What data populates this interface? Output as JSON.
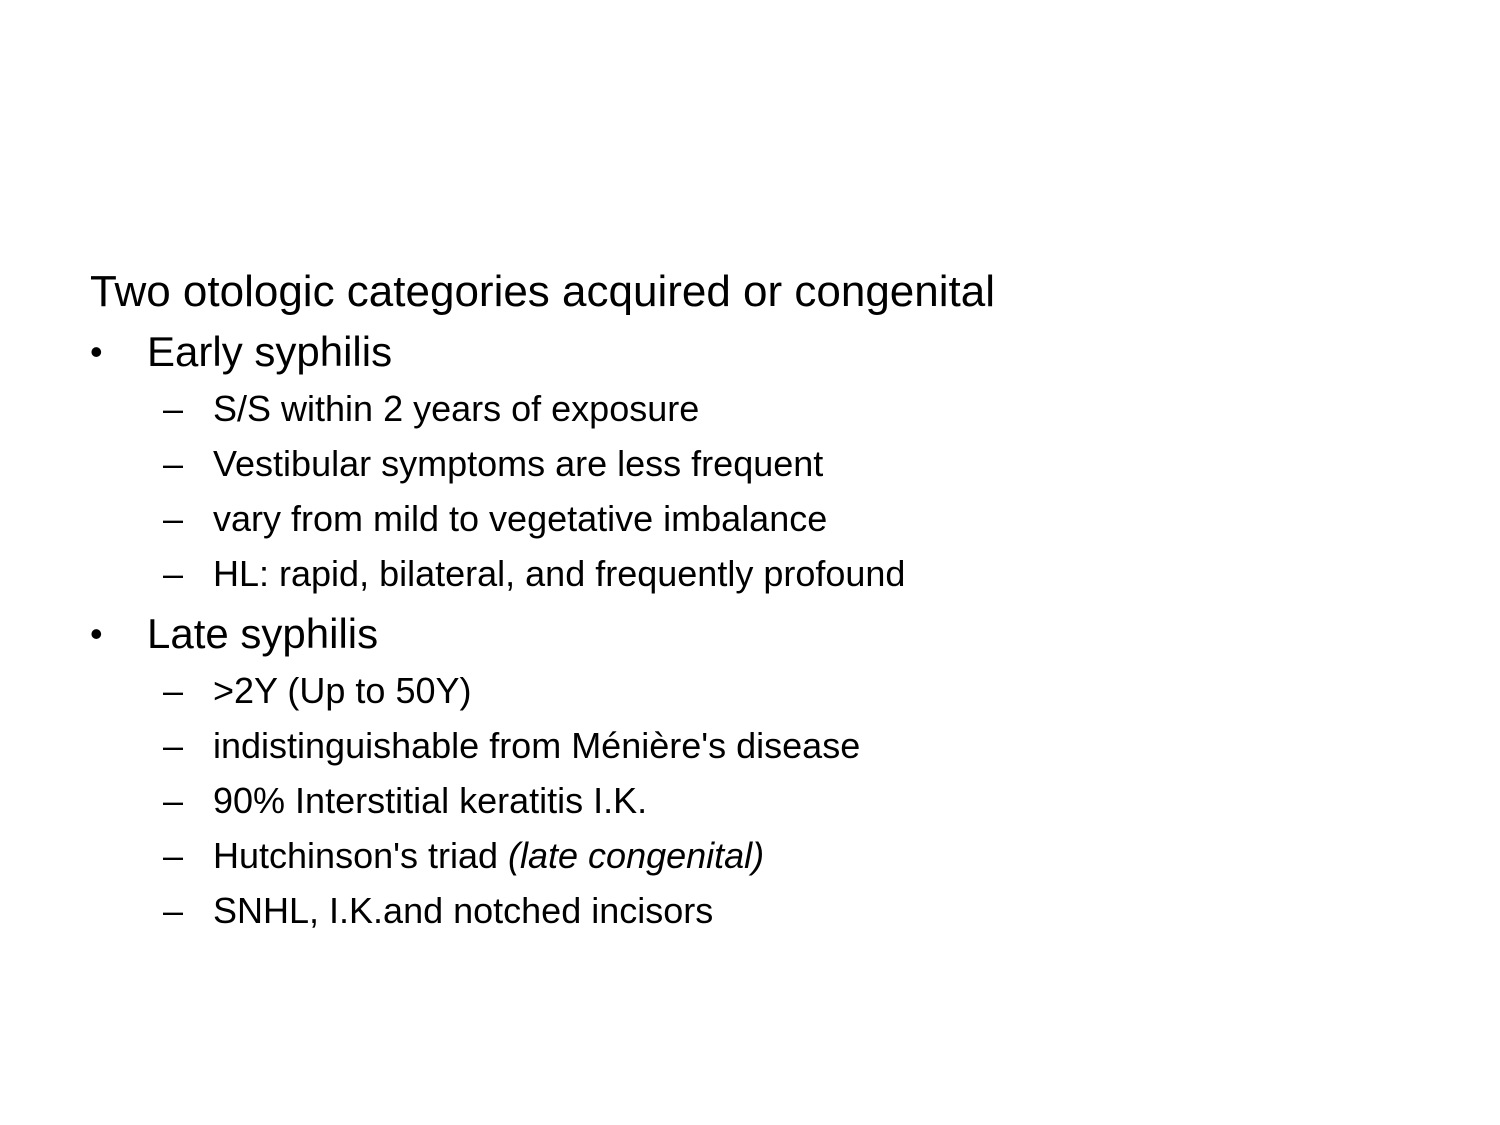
{
  "slide": {
    "intro": "Two otologic categories acquired or congenital",
    "sections": [
      {
        "title": "Early syphilis",
        "items": [
          {
            "text": "S/S within 2 years of exposure",
            "emphasis": ""
          },
          {
            "text": "Vestibular symptoms are less frequent",
            "emphasis": ""
          },
          {
            "text": "vary from mild to vegetative imbalance",
            "emphasis": ""
          },
          {
            "text": "HL: rapid, bilateral, and frequently profound",
            "emphasis": ""
          }
        ]
      },
      {
        "title": "Late syphilis",
        "items": [
          {
            "text": ">2Y (Up to 50Y)",
            "emphasis": ""
          },
          {
            "text": "indistinguishable from Ménière's disease",
            "emphasis": ""
          },
          {
            "text": "90% Interstitial keratitis I.K.",
            "emphasis": ""
          },
          {
            "text": "Hutchinson's triad ",
            "emphasis": "(late congenital)"
          },
          {
            "text": "SNHL, I.K.and notched incisors",
            "emphasis": ""
          }
        ]
      }
    ],
    "markers": {
      "level1": "•",
      "level2": "–"
    }
  }
}
